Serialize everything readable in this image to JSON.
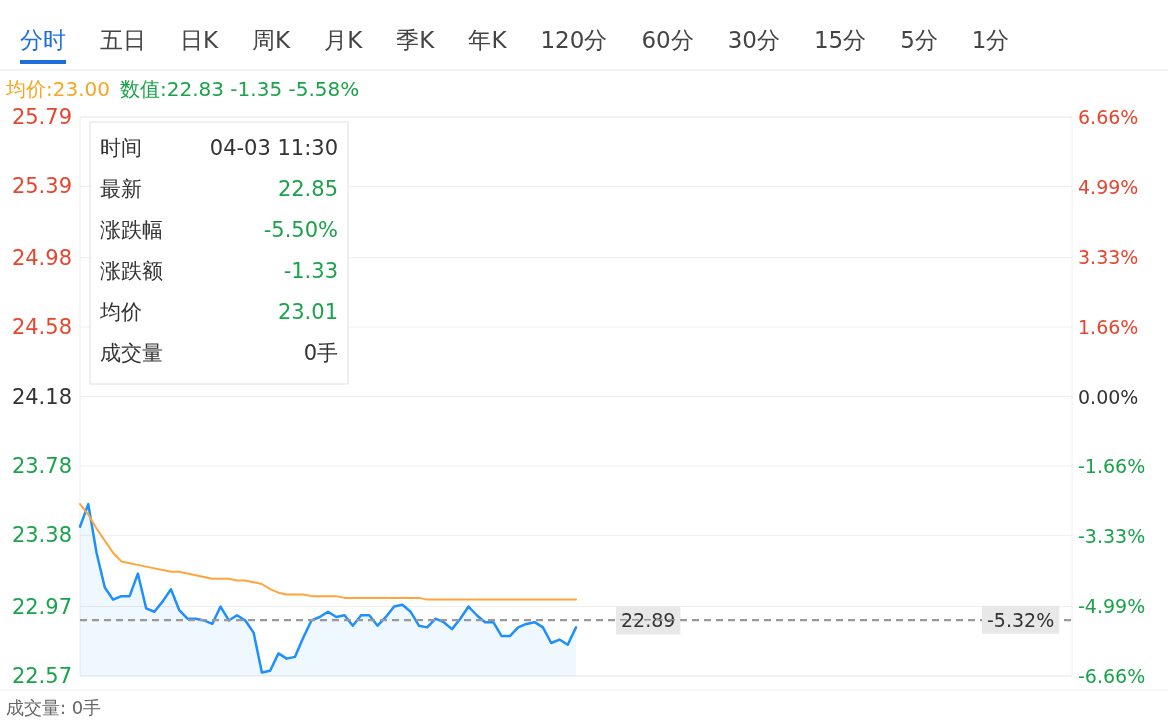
{
  "chart_data": {
    "type": "line",
    "categories": [
      null,
      null,
      null,
      null,
      null,
      null,
      null,
      null,
      null,
      null,
      null,
      null,
      null,
      null,
      null,
      null,
      null,
      null,
      null,
      null,
      null,
      null,
      null,
      null,
      null,
      null,
      null,
      null,
      null,
      null,
      null,
      null,
      null,
      null,
      null,
      null,
      null,
      null,
      null,
      null,
      null,
      null,
      null,
      null,
      null,
      null,
      null,
      null,
      null,
      null,
      null,
      null,
      null,
      null,
      null,
      null,
      null,
      null,
      null,
      null,
      null,
      null,
      null,
      null,
      null,
      null,
      null,
      null,
      null,
      null,
      null,
      null,
      null,
      null,
      null,
      null,
      null,
      null,
      null,
      null,
      null,
      null,
      null,
      null,
      null,
      null,
      null,
      null,
      null,
      null,
      null,
      null,
      null,
      null,
      null,
      null,
      null,
      null,
      null,
      null,
      null,
      null,
      null,
      null,
      null,
      null,
      null,
      null,
      null,
      null,
      null,
      null,
      null,
      null,
      null,
      null,
      null,
      null,
      null,
      null,
      null
    ],
    "series": [
      {
        "type": "area",
        "color": "#1e8fff",
        "values": [
          23.43,
          23.56,
          23.28,
          23.08,
          23.01,
          23.03,
          23.03,
          23.16,
          22.96,
          22.94,
          23.0,
          23.07,
          22.95,
          22.9,
          22.9,
          22.89,
          22.87,
          22.97,
          22.89,
          22.92,
          22.89,
          22.82,
          22.59,
          22.6,
          22.7,
          22.67,
          22.68,
          22.79,
          22.89,
          22.91,
          22.94,
          22.91,
          22.92,
          22.86,
          22.92,
          22.92,
          22.86,
          22.91,
          22.97,
          22.98,
          22.94,
          22.86,
          22.85,
          22.9,
          22.88,
          22.84,
          22.9,
          22.97,
          22.92,
          22.88,
          22.88,
          22.8,
          22.8,
          22.85,
          22.87,
          22.88,
          22.85,
          22.76,
          22.78,
          22.75,
          22.85,
          null,
          null,
          null,
          null,
          null,
          null,
          null,
          null,
          null,
          null,
          null,
          null,
          null,
          null,
          null,
          null,
          null,
          null,
          null,
          null,
          null,
          null,
          null,
          null,
          null,
          null,
          null,
          null,
          null,
          null,
          null,
          null,
          null,
          null,
          null,
          null,
          null,
          null,
          null,
          null,
          null,
          null,
          null,
          null,
          null,
          null,
          null,
          null,
          null,
          null,
          null,
          null,
          null,
          null,
          null,
          null,
          null,
          null,
          null,
          null
        ]
      },
      {
        "color": "#ffa53b",
        "values": [
          23.56,
          23.5,
          23.42,
          23.35,
          23.28,
          23.23,
          23.22,
          23.21,
          23.2,
          23.19,
          23.18,
          23.17,
          23.17,
          23.16,
          23.15,
          23.14,
          23.13,
          23.13,
          23.13,
          23.12,
          23.12,
          23.11,
          23.1,
          23.07,
          23.05,
          23.04,
          23.04,
          23.04,
          23.03,
          23.03,
          23.03,
          23.03,
          23.02,
          23.02,
          23.02,
          23.02,
          23.02,
          23.02,
          23.02,
          23.02,
          23.02,
          23.02,
          23.01,
          23.01,
          23.01,
          23.01,
          23.01,
          23.01,
          23.01,
          23.01,
          23.01,
          23.01,
          23.01,
          23.01,
          23.01,
          23.01,
          23.01,
          23.01,
          23.01,
          23.01,
          23.01,
          null,
          null,
          null,
          null,
          null,
          null,
          null,
          null,
          null,
          null,
          null,
          null,
          null,
          null,
          null,
          null,
          null,
          null,
          null,
          null,
          null,
          null,
          null,
          null,
          null,
          null,
          null,
          null,
          null,
          null,
          null,
          null,
          null,
          null,
          null,
          null,
          null,
          null,
          null,
          null,
          null,
          null,
          null,
          null,
          null,
          null,
          null,
          null,
          null,
          null,
          null,
          null,
          null,
          null,
          null,
          null,
          null,
          null,
          null,
          null
        ]
      }
    ],
    "ylim": [
      22.57,
      25.79
    ],
    "yticks": [
      22.57,
      22.97,
      23.38,
      23.78,
      24.18,
      24.58,
      24.98,
      25.39,
      25.79
    ],
    "y2lim": [
      -6.66,
      6.66
    ],
    "y2ticks": [
      {
        "value": -6.66,
        "label": "-6.66%"
      },
      {
        "value": -4.99,
        "label": "-4.99%"
      },
      {
        "value": -3.33,
        "label": "-3.33%"
      },
      {
        "value": -1.66,
        "label": "-1.66%"
      },
      {
        "value": 0,
        "label": "0.00%"
      },
      {
        "value": 1.66,
        "label": "1.66%"
      },
      {
        "value": 3.33,
        "label": "3.33%"
      },
      {
        "value": 4.99,
        "label": "4.99%"
      },
      {
        "value": 6.66,
        "label": "6.66%"
      }
    ],
    "grid": "y",
    "ref_lines": [
      {
        "axis": "y",
        "value": 22.89,
        "label": "22.89",
        "color": "#999999",
        "line_style": "dashed"
      },
      {
        "axis": "y2",
        "value": -5.32,
        "label": "-5.32%",
        "color": "#999999",
        "line_style": "dashed"
      }
    ],
    "annotations": [
      "分时",
      "五日",
      "日K",
      "周K",
      "月K",
      "季K",
      "年K",
      "120分",
      "60分",
      "30分",
      "15分",
      "5分",
      "1分",
      "均价:23.00",
      "数值:22.83 -1.35 -5.58%",
      "时间",
      "04-03 11:30",
      "最新",
      "22.85",
      "涨跌幅",
      "-5.50%",
      "涨跌额",
      "-1.33",
      "均价",
      "23.01",
      "成交量",
      "0手",
      "成交量: 0手"
    ]
  }
}
